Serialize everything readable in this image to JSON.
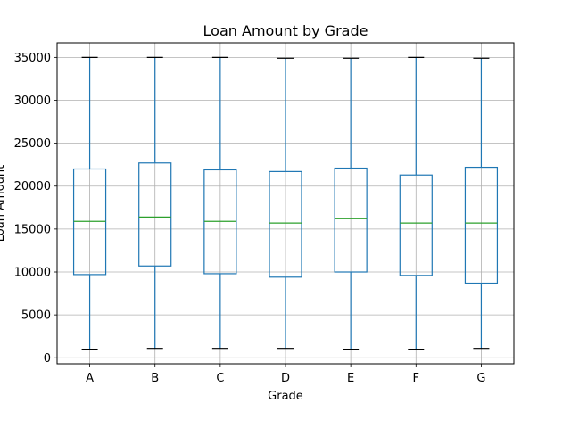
{
  "chart_data": {
    "type": "box",
    "title": "Loan Amount by Grade",
    "xlabel": "Grade",
    "ylabel": "Loan Amount",
    "categories": [
      "A",
      "B",
      "C",
      "D",
      "E",
      "F",
      "G"
    ],
    "series": [
      {
        "category": "A",
        "min": 1000,
        "q1": 9700,
        "median": 15900,
        "q3": 22000,
        "max": 35000
      },
      {
        "category": "B",
        "min": 1100,
        "q1": 10700,
        "median": 16400,
        "q3": 22700,
        "max": 35000
      },
      {
        "category": "C",
        "min": 1100,
        "q1": 9800,
        "median": 15900,
        "q3": 21900,
        "max": 35000
      },
      {
        "category": "D",
        "min": 1100,
        "q1": 9400,
        "median": 15700,
        "q3": 21700,
        "max": 34900
      },
      {
        "category": "E",
        "min": 1000,
        "q1": 10000,
        "median": 16200,
        "q3": 22100,
        "max": 34900
      },
      {
        "category": "F",
        "min": 1000,
        "q1": 9600,
        "median": 15700,
        "q3": 21300,
        "max": 35000
      },
      {
        "category": "G",
        "min": 1100,
        "q1": 8700,
        "median": 15700,
        "q3": 22200,
        "max": 34900
      }
    ],
    "yticks": [
      0,
      5000,
      10000,
      15000,
      20000,
      25000,
      30000,
      35000
    ],
    "ylim": [
      -700,
      36700
    ],
    "grid": true,
    "colors": {
      "box": "#1f77b4",
      "median": "#2ca02c",
      "whisker_cap": "#000000",
      "grid": "#b0b0b0"
    }
  }
}
